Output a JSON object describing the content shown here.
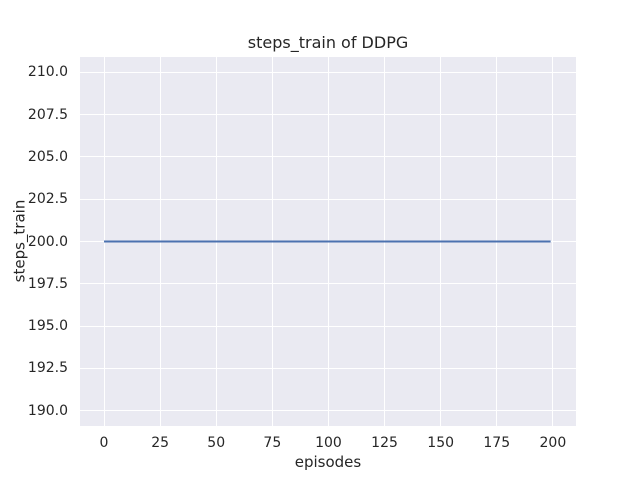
{
  "chart_data": {
    "type": "line",
    "title": "steps_train of DDPG",
    "xlabel": "episodes",
    "ylabel": "steps_train",
    "xticks": [
      0,
      25,
      50,
      75,
      100,
      125,
      150,
      175,
      200
    ],
    "xtick_labels": [
      "0",
      "25",
      "50",
      "75",
      "100",
      "125",
      "150",
      "175",
      "200"
    ],
    "yticks": [
      190.0,
      192.5,
      195.0,
      197.5,
      200.0,
      202.5,
      205.0,
      207.5,
      210.0
    ],
    "ytick_labels": [
      "190.0",
      "192.5",
      "195.0",
      "197.5",
      "200.0",
      "202.5",
      "205.0",
      "207.5",
      "210.0"
    ],
    "xlim": [
      -10.7,
      210.3
    ],
    "ylim": [
      189.1,
      210.9
    ],
    "grid": true,
    "legend_visible": false,
    "plot_bg_color": "#EAEAF2",
    "grid_color": "#FFFFFF",
    "text_color": "#262626",
    "series": [
      {
        "name": "steps_train",
        "color": "#4C72B0",
        "line_width": 2,
        "x": [
          0,
          199
        ],
        "y": [
          200,
          200
        ],
        "description": "constant steps_train = 200 across episodes 0 to 199"
      }
    ]
  }
}
